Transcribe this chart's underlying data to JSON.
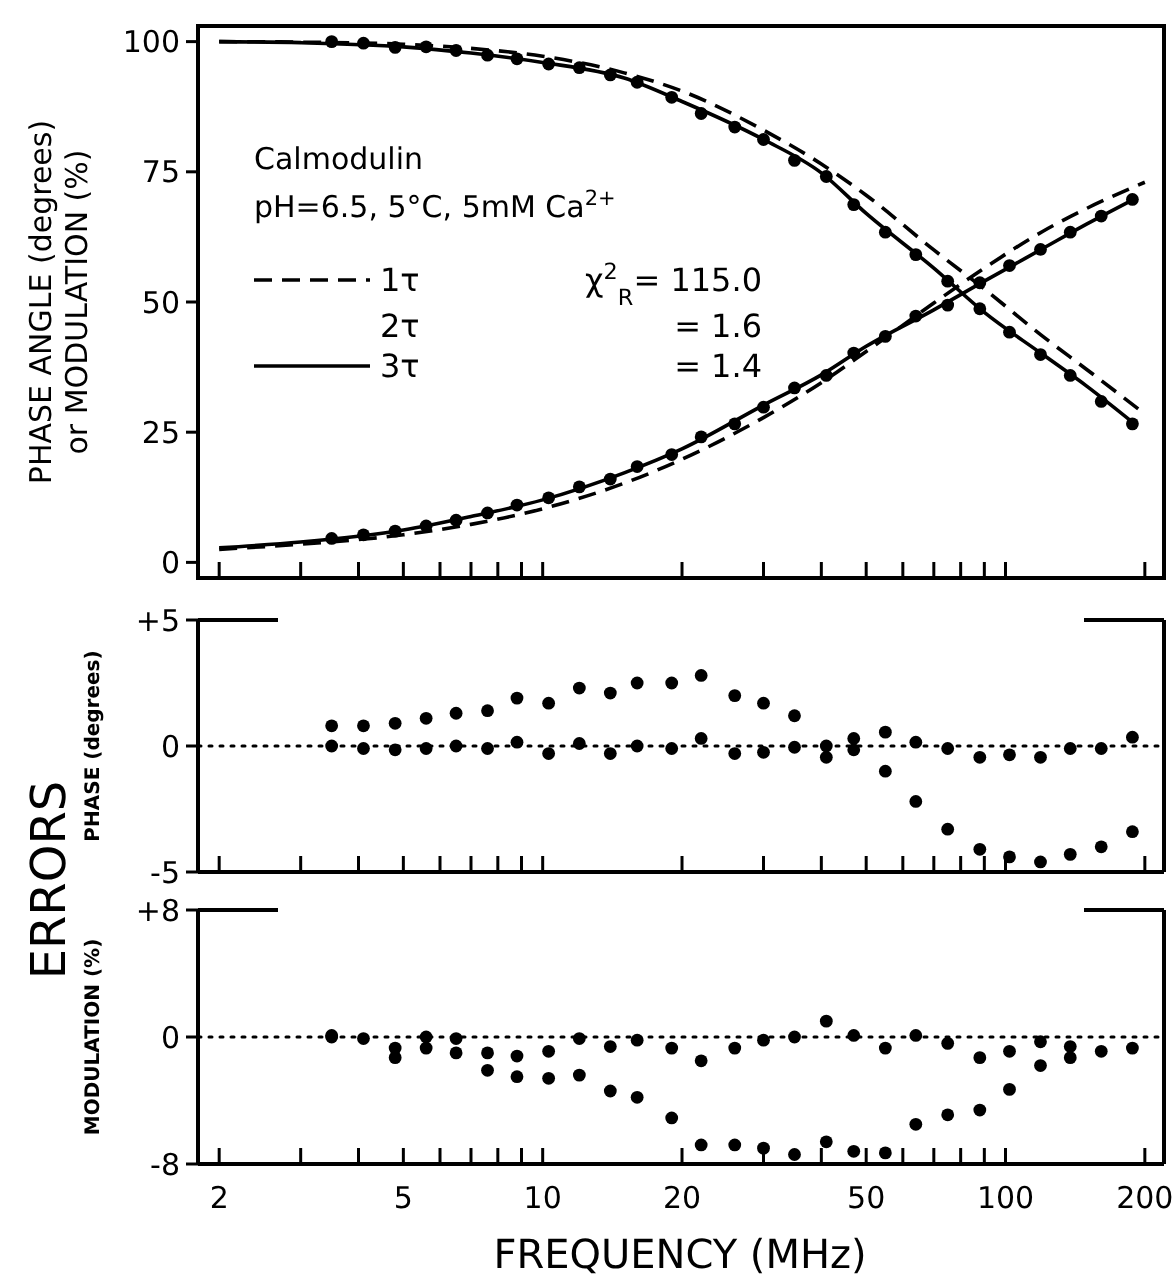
{
  "chart_data": [
    {
      "type": "scatter",
      "ylabel": "PHASE ANGLE (degrees)\nor MODULATION (%)",
      "xlim": [
        1.8,
        220
      ],
      "ylim": [
        -3,
        103
      ],
      "log": "x",
      "legend": "left",
      "tick_labels": "y",
      "xticks": [
        {
          "value": 2,
          "label": null
        },
        {
          "value": 3,
          "label": null
        },
        {
          "value": 4,
          "label": null
        },
        {
          "value": 5,
          "label": null
        },
        {
          "value": 6,
          "label": null
        },
        {
          "value": 7,
          "label": null
        },
        {
          "value": 8,
          "label": null
        },
        {
          "value": 9,
          "label": null
        },
        {
          "value": 10,
          "label": null
        },
        {
          "value": 20,
          "label": null
        },
        {
          "value": 30,
          "label": null
        },
        {
          "value": 40,
          "label": null
        },
        {
          "value": 50,
          "label": null
        },
        {
          "value": 60,
          "label": null
        },
        {
          "value": 70,
          "label": null
        },
        {
          "value": 80,
          "label": null
        },
        {
          "value": 90,
          "label": null
        },
        {
          "value": 100,
          "label": null
        },
        {
          "value": 200,
          "label": null
        }
      ],
      "yticks": [
        0,
        25,
        50,
        75,
        100
      ],
      "x": [
        3.5,
        4.1,
        4.8,
        5.6,
        6.5,
        7.6,
        8.8,
        10.3,
        12,
        14,
        16,
        19,
        22,
        26,
        30,
        35,
        41,
        47,
        55,
        64,
        75,
        88,
        102,
        119,
        138,
        161,
        188
      ],
      "series": [
        {
          "type": "line",
          "name": "1τ",
          "color": "#000000",
          "line_style": "dashed",
          "marker": "none",
          "x": [
            2,
            3,
            5,
            7,
            10,
            15,
            20,
            30,
            40,
            50,
            70,
            90,
            120,
            150,
            200
          ],
          "values": [
            2.5,
            3.5,
            5.3,
            7.3,
            10.3,
            15.2,
            19.8,
            27.8,
            34.5,
            40.5,
            49.8,
            56.5,
            63.5,
            68,
            73
          ]
        },
        {
          "type": "line",
          "color": "#000000",
          "line_style": "dashed",
          "marker": "none",
          "x": [
            2,
            3,
            5,
            7,
            10,
            15,
            20,
            30,
            40,
            50,
            70,
            90,
            120,
            150,
            200
          ],
          "values": [
            100,
            99.9,
            99.5,
            98.7,
            97.2,
            94,
            90.5,
            83,
            76.5,
            70.5,
            60,
            52.5,
            43.5,
            37,
            28.5
          ]
        },
        {
          "type": "line",
          "name": "3τ",
          "color": "#000000",
          "line_style": "solid",
          "marker": "none",
          "x": [
            2,
            3,
            5,
            7,
            10,
            15,
            20,
            30,
            40,
            50,
            70,
            90,
            120,
            150,
            190
          ],
          "values": [
            2.8,
            3.9,
            6.2,
            8.8,
            12,
            17.2,
            21.8,
            30.2,
            36,
            41.5,
            48.5,
            54,
            60.2,
            65,
            69.8
          ]
        },
        {
          "type": "line",
          "color": "#000000",
          "line_style": "solid",
          "marker": "none",
          "x": [
            2,
            3,
            5,
            7,
            10,
            15,
            20,
            30,
            40,
            50,
            70,
            90,
            120,
            150,
            190
          ],
          "values": [
            100,
            99.8,
            99,
            97.8,
            96,
            93,
            88.5,
            81.2,
            74.8,
            67,
            56.5,
            48,
            40,
            33.8,
            26.6
          ]
        },
        {
          "color": "#000000",
          "marker": "circle",
          "values": [
            4.6,
            5.3,
            6,
            7,
            8.1,
            9.5,
            11,
            12.4,
            14.5,
            16,
            18.4,
            20.7,
            24.1,
            26.6,
            29.8,
            33.5,
            35.9,
            40.2,
            43.4,
            47.3,
            49.4,
            53.7,
            57,
            60.1,
            63.4,
            66.5,
            69.7
          ]
        },
        {
          "color": "#000000",
          "marker": "circle",
          "values": [
            100,
            99.7,
            98.9,
            99,
            98.3,
            97.4,
            96.7,
            95.7,
            95,
            93.6,
            92.2,
            89.3,
            86.2,
            83.6,
            81.2,
            77.2,
            74.1,
            68.7,
            63.4,
            59.1,
            54,
            48.7,
            44.2,
            39.9,
            35.9,
            30.9,
            26.6
          ]
        }
      ],
      "annotations": [
        "Calmodulin",
        "pH=6.5, 5°C, 5mM Ca$^{2+}$",
        "2τ",
        "χ$^{2}$$_{R}$= 115.0",
        "= 1.6",
        "= 1.4"
      ]
    },
    {
      "type": "scatter",
      "ylabel": "PHASE (degrees)",
      "xlim": [
        1.8,
        220
      ],
      "ylim": [
        -5,
        5
      ],
      "log": "x",
      "marker": "circle",
      "tick_labels": "y",
      "xticks": [
        {
          "value": 2,
          "label": null
        },
        {
          "value": 3,
          "label": null
        },
        {
          "value": 4,
          "label": null
        },
        {
          "value": 5,
          "label": null
        },
        {
          "value": 6,
          "label": null
        },
        {
          "value": 7,
          "label": null
        },
        {
          "value": 8,
          "label": null
        },
        {
          "value": 9,
          "label": null
        },
        {
          "value": 10,
          "label": null
        },
        {
          "value": 20,
          "label": null
        },
        {
          "value": 30,
          "label": null
        },
        {
          "value": 40,
          "label": null
        },
        {
          "value": 50,
          "label": null
        },
        {
          "value": 60,
          "label": null
        },
        {
          "value": 70,
          "label": null
        },
        {
          "value": 80,
          "label": null
        },
        {
          "value": 90,
          "label": null
        },
        {
          "value": 100,
          "label": null
        },
        {
          "value": 200,
          "label": null
        }
      ],
      "yticks": [
        {
          "value": 5,
          "label": "+5"
        },
        0,
        -5
      ],
      "x": [
        3.5,
        4.1,
        4.8,
        5.6,
        6.5,
        7.6,
        8.8,
        10.3,
        12,
        14,
        16,
        19,
        22,
        26,
        30,
        35,
        41,
        47,
        55,
        64,
        75,
        88,
        102,
        119,
        138,
        161,
        188
      ],
      "series": [
        {
          "color": "#000000",
          "values": [
            0.8,
            0.8,
            0.9,
            1.1,
            1.3,
            1.4,
            1.9,
            1.7,
            2.3,
            2.1,
            2.5,
            2.5,
            2.8,
            2,
            1.7,
            1.2,
            0,
            -0.15,
            -1,
            -2.2,
            -3.3,
            -4.1,
            -4.4,
            -4.6,
            -4.3,
            -4,
            -3.4
          ]
        },
        {
          "color": "#000000",
          "values": [
            0,
            -0.1,
            -0.15,
            -0.1,
            0,
            -0.1,
            0.15,
            -0.3,
            0.1,
            -0.3,
            0,
            -0.1,
            0.3,
            -0.3,
            -0.25,
            -0.05,
            -0.45,
            0.3,
            0.55,
            0.15,
            -0.1,
            -0.45,
            -0.35,
            -0.45,
            -0.1,
            -0.1,
            0.35
          ]
        }
      ],
      "ref_lines": [
        {
          "axis": "y",
          "value": 0,
          "line_style": "dotted"
        }
      ]
    },
    {
      "type": "scatter",
      "ylabel": "MODULATION (%)",
      "xlabel": "FREQUENCY (MHz)",
      "xlim": [
        1.8,
        220
      ],
      "ylim": [
        -8,
        8
      ],
      "log": "x",
      "marker": "circle",
      "xticks": [
        2,
        {
          "value": 3,
          "label": null
        },
        {
          "value": 4,
          "label": null
        },
        5,
        {
          "value": 6,
          "label": null
        },
        {
          "value": 7,
          "label": null
        },
        {
          "value": 8,
          "label": null
        },
        {
          "value": 9,
          "label": null
        },
        10,
        20,
        {
          "value": 30,
          "label": null
        },
        {
          "value": 40,
          "label": null
        },
        50,
        {
          "value": 60,
          "label": null
        },
        {
          "value": 70,
          "label": null
        },
        {
          "value": 80,
          "label": null
        },
        {
          "value": 90,
          "label": null
        },
        100,
        200
      ],
      "yticks": [
        {
          "value": 8,
          "label": "+8"
        },
        0,
        -8
      ],
      "x": [
        3.5,
        4.1,
        4.8,
        5.6,
        6.5,
        7.6,
        8.8,
        10.3,
        12,
        14,
        16,
        19,
        22,
        26,
        30,
        35,
        41,
        47,
        55,
        64,
        75,
        88,
        102,
        119,
        138,
        161,
        188
      ],
      "series": [
        {
          "color": "#000000",
          "values": [
            0,
            null,
            -1.3,
            -0.7,
            -1,
            -2.1,
            -2.5,
            -2.6,
            -2.4,
            -3.4,
            -3.8,
            -5.1,
            -6.8,
            -6.8,
            -7,
            -7.4,
            -6.6,
            -7.2,
            -7.3,
            -5.5,
            -4.9,
            -4.6,
            -3.3,
            -1.8,
            -1.3,
            null,
            null
          ]
        },
        {
          "color": "#000000",
          "values": [
            0.1,
            -0.1,
            -0.7,
            0,
            -0.1,
            -1,
            -1.2,
            -0.9,
            -0.1,
            -0.6,
            -0.2,
            -0.7,
            -1.5,
            -0.7,
            -0.2,
            0,
            1,
            0.1,
            -0.7,
            0.1,
            -0.4,
            -1.3,
            -0.9,
            -0.3,
            -0.6,
            -0.9,
            -0.7
          ]
        }
      ],
      "ref_lines": [
        {
          "axis": "y",
          "value": 0,
          "line_style": "dotted"
        }
      ],
      "annotations": [
        "ERRORS"
      ]
    }
  ]
}
